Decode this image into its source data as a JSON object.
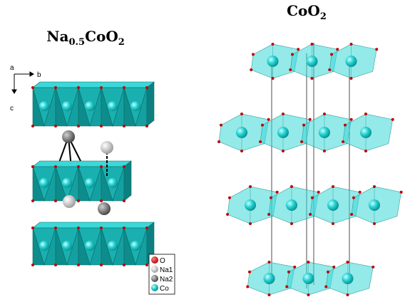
{
  "left_title": [
    "Na",
    "0.5",
    "CoO",
    "2"
  ],
  "right_title": [
    "CoO",
    "2"
  ],
  "axes": {
    "a": "a",
    "b": "b",
    "c": "c"
  },
  "legend": [
    "O",
    "Na1",
    "Na2",
    "Co"
  ]
}
